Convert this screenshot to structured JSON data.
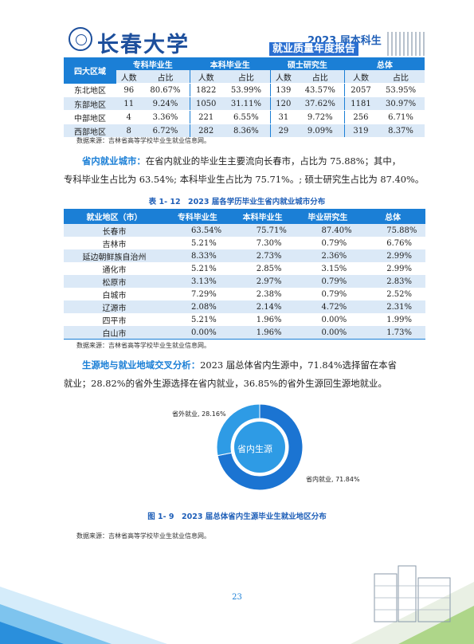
{
  "header": {
    "university_logo_text": "长春大学",
    "badge_year": "2023 届本科生",
    "badge_title": "就业质量年度报告"
  },
  "table1": {
    "row_header": "四大区域",
    "groups": [
      "专科毕业生",
      "本科毕业生",
      "硕士研究生",
      "总体"
    ],
    "sub_headers": [
      "人数",
      "占比",
      "人数",
      "占比",
      "人数",
      "占比",
      "人数",
      "占比"
    ],
    "rows": [
      {
        "region": "东北地区",
        "cells": [
          "96",
          "80.67%",
          "1822",
          "53.99%",
          "139",
          "43.57%",
          "2057",
          "53.95%"
        ]
      },
      {
        "region": "东部地区",
        "cells": [
          "11",
          "9.24%",
          "1050",
          "31.11%",
          "120",
          "37.62%",
          "1181",
          "30.97%"
        ]
      },
      {
        "region": "中部地区",
        "cells": [
          "4",
          "3.36%",
          "221",
          "6.55%",
          "31",
          "9.72%",
          "256",
          "6.71%"
        ]
      },
      {
        "region": "西部地区",
        "cells": [
          "8",
          "6.72%",
          "282",
          "8.36%",
          "29",
          "9.09%",
          "319",
          "8.37%"
        ]
      }
    ],
    "source": "数据来源：吉林省高等学校毕业生就业信息网。"
  },
  "para1": {
    "keyword": "省内就业城市：",
    "line1_text": "在省内就业的毕业生主要流向长春市，占比为 75.88%；其中，",
    "line2_text": "专科毕业生占比为 63.54%; 本科毕业生占比为 75.71%。; 硕士研究生占比为 87.40%。"
  },
  "table2": {
    "caption": "表 1- 12　2023 届各学历毕业生省内就业城市分布",
    "headers": [
      "就业地区（市）",
      "专科毕业生",
      "本科毕业生",
      "毕业研究生",
      "总体"
    ],
    "rows": [
      [
        "长春市",
        "63.54%",
        "75.71%",
        "87.40%",
        "75.88%"
      ],
      [
        "吉林市",
        "5.21%",
        "7.30%",
        "0.79%",
        "6.76%"
      ],
      [
        "延边朝鲜族自治州",
        "8.33%",
        "2.73%",
        "2.36%",
        "2.99%"
      ],
      [
        "通化市",
        "5.21%",
        "2.85%",
        "3.15%",
        "2.99%"
      ],
      [
        "松原市",
        "3.13%",
        "2.97%",
        "0.79%",
        "2.83%"
      ],
      [
        "白城市",
        "7.29%",
        "2.38%",
        "0.79%",
        "2.52%"
      ],
      [
        "辽源市",
        "2.08%",
        "2.14%",
        "4.72%",
        "2.31%"
      ],
      [
        "四平市",
        "5.21%",
        "1.96%",
        "0.00%",
        "1.99%"
      ],
      [
        "白山市",
        "0.00%",
        "1.96%",
        "0.00%",
        "1.73%"
      ]
    ],
    "source": "数据来源：吉林省高等学校毕业生就业信息网。"
  },
  "para2": {
    "keyword": "生源地与就业地域交叉分析：",
    "line1_text": "2023 届总体省内生源中，71.84%选择留在本省",
    "line2_text": "就业；28.82%的省外生源选择在省内就业，36.85%的省外生源回生源地就业。"
  },
  "chart_data": {
    "type": "pie",
    "title": "图 1- 9　2023 届总体省内生源毕业生就业地区分布",
    "center_label": "省内生源",
    "slices": [
      {
        "label": "省内就业, 71.84%",
        "value": 71.84,
        "color": "#1b74d2"
      },
      {
        "label": "省外就业, 28.16%",
        "value": 28.16,
        "color": "#2e9be5"
      }
    ],
    "source": "数据来源：吉林省高等学校毕业生就业信息网。"
  },
  "footer": {
    "page_number": "23"
  }
}
